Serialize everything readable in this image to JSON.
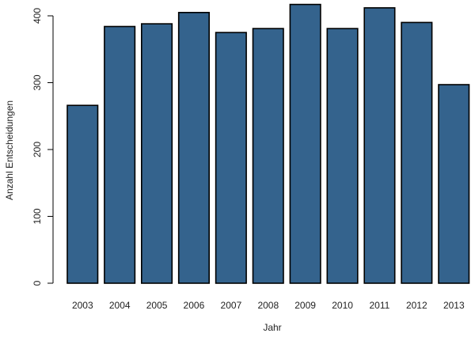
{
  "chart_data": {
    "type": "bar",
    "title": "",
    "xlabel": "Jahr",
    "ylabel": "Anzahl Entscheidungen",
    "categories": [
      "2003",
      "2004",
      "2005",
      "2006",
      "2007",
      "2008",
      "2009",
      "2010",
      "2011",
      "2012",
      "2013"
    ],
    "values": [
      266,
      384,
      388,
      405,
      375,
      381,
      417,
      381,
      412,
      390,
      297
    ],
    "ylim": [
      0,
      400
    ],
    "yticks": [
      "0",
      "100",
      "200",
      "300",
      "400"
    ],
    "grid": false,
    "bar_color": "#34638d"
  }
}
